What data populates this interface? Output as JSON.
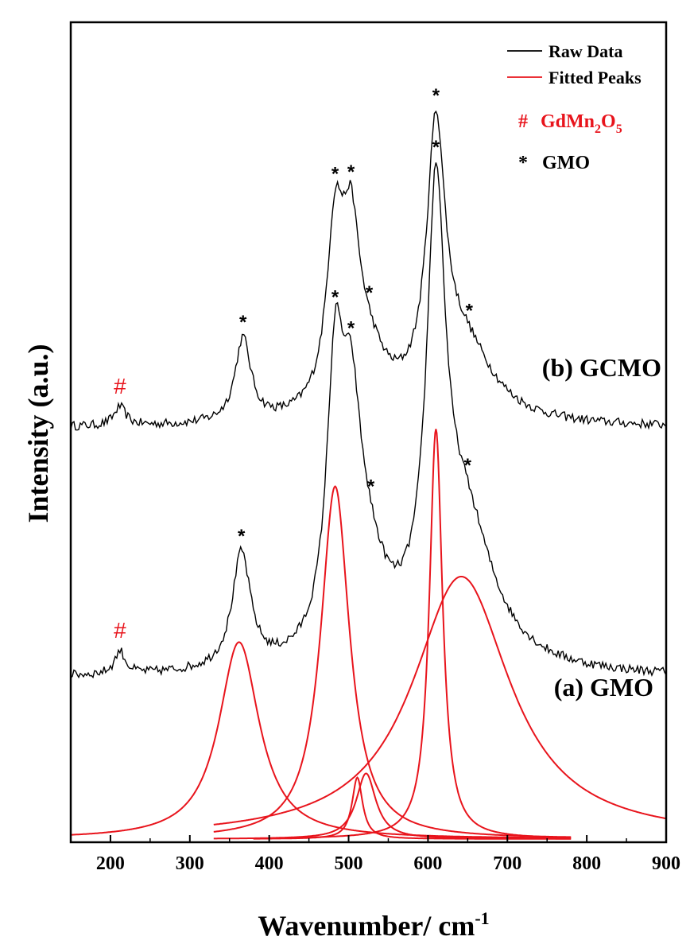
{
  "chart_data": {
    "type": "line",
    "xlabel": "Wavenumber/ cm",
    "xlabel_superscript": "-1",
    "ylabel": "Intensity (a.u.)",
    "xlim": [
      150,
      900
    ],
    "ylim": [
      0,
      100
    ],
    "x_ticks": [
      "200",
      "300",
      "400",
      "500",
      "600",
      "700",
      "800",
      "900"
    ],
    "x_tick_values": [
      200,
      300,
      400,
      500,
      600,
      700,
      800,
      900
    ],
    "colors": {
      "raw": "#000000",
      "fit": "#e8141c"
    },
    "legend": {
      "position": "top-right",
      "items": [
        {
          "label": "Raw Data",
          "color": "#000000"
        },
        {
          "label": "Fitted Peaks",
          "color": "#e8141c"
        }
      ],
      "markers": [
        {
          "symbol": "#",
          "label": "GdMn",
          "sub1": "2",
          "mid": "O",
          "sub2": "5",
          "color": "#e8141c"
        },
        {
          "symbol": "*",
          "label": "GMO",
          "color": "#000000"
        }
      ]
    },
    "series": [
      {
        "name": "(b) GCMO",
        "type": "raw",
        "baseline": 50.5,
        "peaks": [
          {
            "center": 212,
            "width": 9,
            "height": 2.3,
            "shape": "lorentz"
          },
          {
            "center": 367,
            "width": 12,
            "height": 10.2
          },
          {
            "center": 483,
            "width": 13,
            "height": 20.5
          },
          {
            "center": 503,
            "width": 13,
            "height": 17.0
          },
          {
            "center": 522,
            "width": 30,
            "height": 7.0
          },
          {
            "center": 610,
            "width": 14,
            "height": 32.0
          },
          {
            "center": 645,
            "width": 45,
            "height": 9.0
          }
        ],
        "markers": [
          {
            "x": 212,
            "symbol": "#"
          },
          {
            "x": 367,
            "symbol": "*"
          },
          {
            "x": 483,
            "symbol": "*"
          },
          {
            "x": 503,
            "symbol": "*"
          },
          {
            "x": 526,
            "symbol": "*"
          },
          {
            "x": 610,
            "symbol": "*"
          },
          {
            "x": 652,
            "symbol": "*"
          }
        ]
      },
      {
        "name": "(a) GMO",
        "type": "raw",
        "baseline": 20.0,
        "peaks": [
          {
            "center": 212,
            "width": 8,
            "height": 2.8
          },
          {
            "center": 365,
            "width": 14,
            "height": 14.0
          },
          {
            "center": 483,
            "width": 13,
            "height": 31.0
          },
          {
            "center": 503,
            "width": 15,
            "height": 22.0
          },
          {
            "center": 522,
            "width": 30,
            "height": 10.0
          },
          {
            "center": 610,
            "width": 14,
            "height": 50.0
          },
          {
            "center": 645,
            "width": 45,
            "height": 18.0
          }
        ],
        "markers": [
          {
            "x": 212,
            "symbol": "#"
          },
          {
            "x": 365,
            "symbol": "*"
          },
          {
            "x": 483,
            "symbol": "*"
          },
          {
            "x": 503,
            "symbol": "*"
          },
          {
            "x": 528,
            "symbol": "*"
          },
          {
            "x": 610,
            "symbol": "*"
          },
          {
            "x": 650,
            "symbol": "*"
          }
        ]
      }
    ],
    "fitted_peaks": [
      {
        "center": 362,
        "fwhm": 62,
        "height": 24.0,
        "range": [
          150,
          780
        ]
      },
      {
        "center": 483,
        "fwhm": 44,
        "height": 43.0,
        "range": [
          330,
          780
        ]
      },
      {
        "center": 511,
        "fwhm": 16,
        "height": 7.5,
        "range": [
          380,
          780
        ]
      },
      {
        "center": 522,
        "fwhm": 30,
        "height": 8.0,
        "range": [
          330,
          780
        ]
      },
      {
        "center": 610,
        "fwhm": 20,
        "height": 50.0,
        "range": [
          400,
          780
        ]
      },
      {
        "center": 642,
        "fwhm": 150,
        "height": 32.0,
        "range": [
          330,
          900
        ]
      }
    ]
  }
}
